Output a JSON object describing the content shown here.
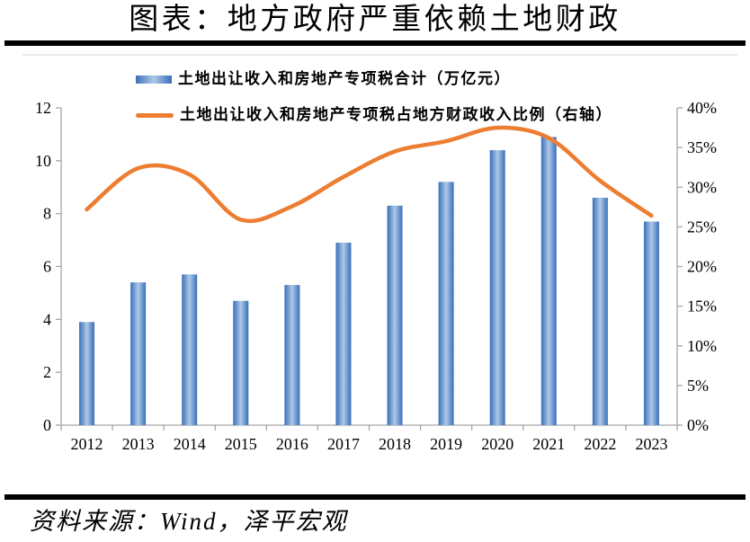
{
  "header": {
    "title": "图表：地方政府严重依赖土地财政"
  },
  "footer": {
    "source": "资料来源：Wind，泽平宏观"
  },
  "colors": {
    "bar_edge": "#3A6FB7",
    "bar_center": "#AEC9E8",
    "line": "#ED7D31",
    "axis": "#A6A6A6",
    "text": "#000000",
    "rule": "#000000"
  },
  "chart_data": {
    "type": "bar+line",
    "title": "图表：地方政府严重依赖土地财政",
    "categories": [
      "2012",
      "2013",
      "2014",
      "2015",
      "2016",
      "2017",
      "2018",
      "2019",
      "2020",
      "2021",
      "2022",
      "2023"
    ],
    "series": [
      {
        "name": "土地出让收入和房地产专项税合计（万亿元）",
        "type": "bar",
        "axis": "left",
        "values": [
          3.9,
          5.4,
          5.7,
          4.7,
          5.3,
          6.9,
          8.3,
          9.2,
          10.4,
          10.9,
          8.6,
          7.7
        ]
      },
      {
        "name": "土地出让收入和房地产专项税占地方财政收入比例（右轴）",
        "type": "line",
        "axis": "right",
        "unit": "%",
        "values": [
          27.2,
          32.4,
          31.6,
          25.9,
          27.6,
          31.3,
          34.5,
          35.8,
          37.5,
          36.2,
          30.8,
          26.4
        ]
      }
    ],
    "left_axis": {
      "min": 0,
      "max": 12,
      "step": 2,
      "ticks": [
        "0",
        "2",
        "4",
        "6",
        "8",
        "10",
        "12"
      ]
    },
    "right_axis": {
      "min": 0,
      "max": 40,
      "step": 5,
      "suffix": "%",
      "ticks": [
        "0%",
        "5%",
        "10%",
        "15%",
        "20%",
        "25%",
        "30%",
        "35%",
        "40%"
      ]
    },
    "legend_position": "top-left",
    "grid": false
  }
}
